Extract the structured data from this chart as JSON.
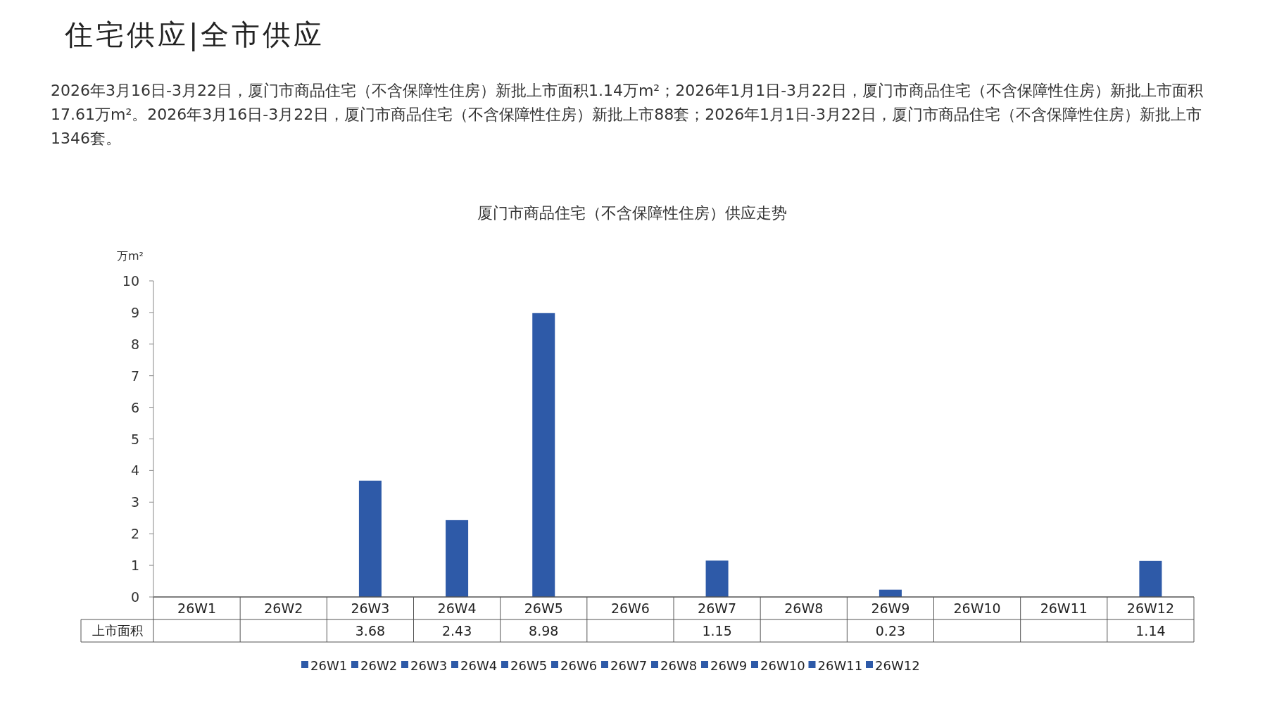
{
  "chart_data": {
    "type": "bar",
    "title": "厦门市商品住宅（不含保障性住房）供应走势",
    "annotations": [
      "住宅供应|全市供应",
      "2026年3月16日-3月22日，厦门市商品住宅（不含保障性住房）新批上市面积1.14万m²；2026年1月1日-3月22日，厦门市商品住宅（不含保障性住房）新批上市面积17.61万m²。2026年3月16日-3月22日，厦门市商品住宅（不含保障性住房）新批上市88套；2026年1月1日-3月22日，厦门市商品住宅（不含保障性住房）新批上市1346套。"
    ],
    "ylabel": "万m²",
    "categories": [
      "26W1",
      "26W2",
      "26W3",
      "26W4",
      "26W5",
      "26W6",
      "26W7",
      "26W8",
      "26W9",
      "26W10",
      "26W11",
      "26W12"
    ],
    "series": [
      {
        "name": "上市面积",
        "color": "#2e5aa8",
        "values": [
          null,
          null,
          3.68,
          2.43,
          8.98,
          null,
          1.15,
          null,
          0.23,
          null,
          null,
          1.14
        ]
      }
    ],
    "ylim": [
      0,
      10
    ],
    "yticks": [
      0,
      1,
      2,
      3,
      4,
      5,
      6,
      7,
      8,
      9,
      10
    ],
    "data_labels": true,
    "legend": "bottom"
  }
}
